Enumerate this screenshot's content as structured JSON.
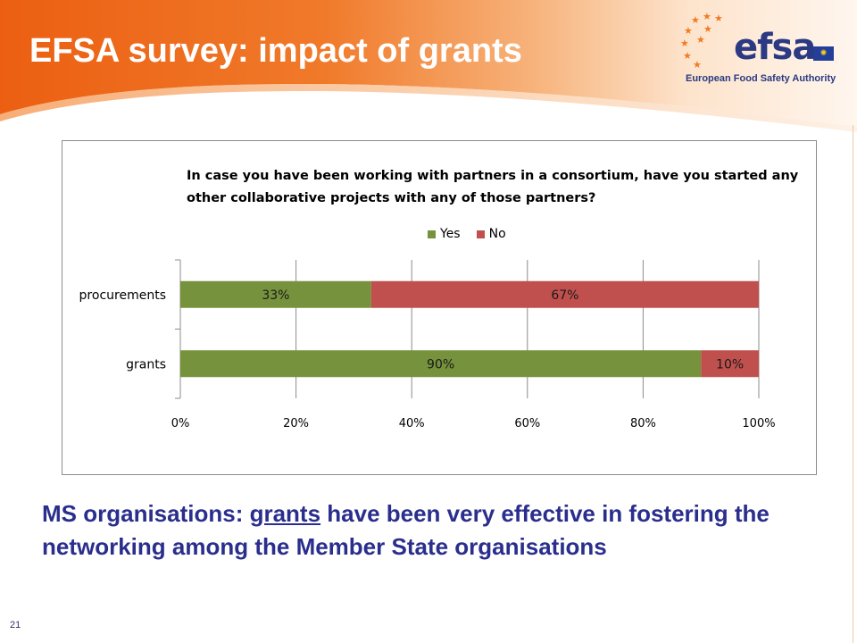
{
  "slide": {
    "title": "EFSA survey: impact of grants",
    "page_number": "21"
  },
  "logo": {
    "wordmark": "efsa",
    "tagline": "European Food Safety Authority"
  },
  "colors": {
    "header_orange": "#ef6a1e",
    "header_light": "#fbe1c6",
    "title_text": "#ffffff",
    "conclusion_text": "#2a2e8c",
    "logo_blue": "#2b3a82",
    "star_orange": "#f07b22"
  },
  "conclusion": {
    "before": "MS organisations: ",
    "underlined": "grants",
    "after": " have been very effective in fostering the networking among the Member State organisations"
  },
  "chart_data": {
    "type": "bar",
    "orientation": "horizontal",
    "stacked": true,
    "percent": true,
    "title": "In case you have been working with partners in a consortium, have you started any other collaborative projects with any of those partners?",
    "categories": [
      "procurements",
      "grants"
    ],
    "series": [
      {
        "name": "Yes",
        "color": "#76923c",
        "values": [
          33,
          90
        ],
        "labels": [
          "33%",
          "90%"
        ]
      },
      {
        "name": "No",
        "color": "#c0504d",
        "values": [
          67,
          10
        ],
        "labels": [
          "67%",
          "10%"
        ]
      }
    ],
    "x_ticks": [
      "0%",
      "20%",
      "40%",
      "60%",
      "80%",
      "100%"
    ],
    "xlim": [
      0,
      100
    ],
    "grid": true,
    "legend_position": "top"
  }
}
